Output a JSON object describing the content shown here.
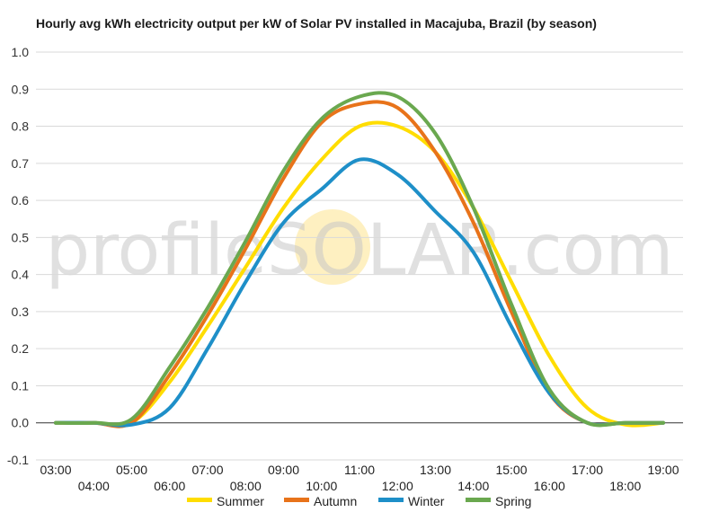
{
  "chart_data": {
    "type": "line",
    "title": "Hourly avg kWh electricity output per kW of Solar PV installed in Macajuba, Brazil (by season)",
    "xlabel": "",
    "ylabel": "",
    "x": [
      "03:00",
      "04:00",
      "05:00",
      "06:00",
      "07:00",
      "08:00",
      "09:00",
      "10:00",
      "11:00",
      "12:00",
      "13:00",
      "14:00",
      "15:00",
      "16:00",
      "17:00",
      "18:00",
      "19:00"
    ],
    "ylim": [
      -0.1,
      1.0
    ],
    "yticks": [
      "1.0",
      "0.9",
      "0.8",
      "0.7",
      "0.6",
      "0.5",
      "0.4",
      "0.3",
      "0.2",
      "0.1",
      "0.0",
      "-0.1"
    ],
    "grid": true,
    "legend_position": "bottom",
    "series": [
      {
        "name": "Summer",
        "color": "#ffdd00",
        "values": [
          0.0,
          0.0,
          0.0,
          0.11,
          0.26,
          0.42,
          0.58,
          0.71,
          0.8,
          0.8,
          0.73,
          0.58,
          0.38,
          0.18,
          0.04,
          -0.005,
          0.0
        ]
      },
      {
        "name": "Autumn",
        "color": "#e8731a",
        "values": [
          0.0,
          0.0,
          0.0,
          0.13,
          0.29,
          0.47,
          0.66,
          0.81,
          0.86,
          0.85,
          0.73,
          0.54,
          0.3,
          0.08,
          0.0,
          0.0,
          0.0
        ]
      },
      {
        "name": "Winter",
        "color": "#1e8fc8",
        "values": [
          0.0,
          0.0,
          -0.005,
          0.04,
          0.2,
          0.38,
          0.54,
          0.63,
          0.71,
          0.67,
          0.57,
          0.46,
          0.26,
          0.08,
          0.0,
          0.0,
          0.0
        ]
      },
      {
        "name": "Spring",
        "color": "#6aa84f",
        "values": [
          0.0,
          0.0,
          0.01,
          0.15,
          0.31,
          0.49,
          0.68,
          0.82,
          0.88,
          0.88,
          0.78,
          0.58,
          0.32,
          0.09,
          0.0,
          0.0,
          0.0
        ]
      }
    ]
  },
  "watermark": {
    "pre": "profile",
    "sol": "SOL",
    "post": "AR.com",
    "sun_color": "#fde9a6"
  }
}
